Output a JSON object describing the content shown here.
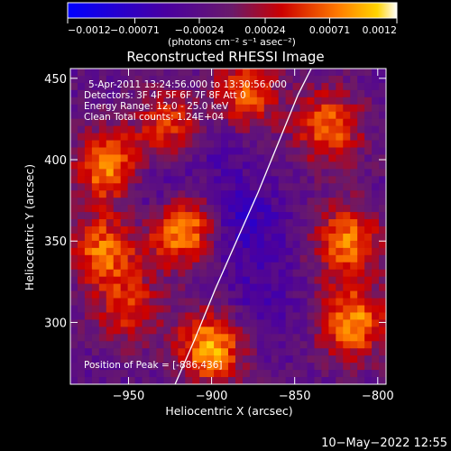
{
  "chart_data": {
    "type": "heatmap",
    "title": "Reconstructed RHESSI Image",
    "xlabel": "Heliocentric X (arcsec)",
    "ylabel": "Heliocentric Y (arcsec)",
    "xlim": [
      -985,
      -795
    ],
    "ylim": [
      262,
      456
    ],
    "xticks": [
      -950,
      -900,
      -850,
      -800
    ],
    "yticks": [
      300,
      350,
      400,
      450
    ],
    "xtick_labels": [
      "−950",
      "−900",
      "−850",
      "−800"
    ],
    "ytick_labels": [
      "300",
      "350",
      "400",
      "450"
    ],
    "colorbar": {
      "range": [
        -0.0012,
        0.0012
      ],
      "ticks": [
        -0.0012,
        -0.00071,
        -0.00024,
        0.00024,
        0.00071,
        0.0012
      ],
      "tick_labels": [
        "−0.0012",
        "−0.00071",
        "−0.00024",
        "0.00024",
        "0.00071",
        "0.0012"
      ],
      "unit": "(photons cm⁻² s⁻¹ asec⁻²)"
    },
    "annotations": [
      "5-Apr-2011 13:24:56.000 to 13:30:56.000",
      "Detectors: 3F 4F 5F 6F 7F 8F  Att 0",
      "Energy Range: 12.0 - 25.0 keV",
      "Clean     Total counts: 1.24E+04"
    ],
    "peak_label": "Position of Peak = [-886,436]",
    "limb": [
      [
        -922,
        262
      ],
      [
        -910,
        290
      ],
      [
        -898,
        320
      ],
      [
        -885,
        350
      ],
      [
        -872,
        380
      ],
      [
        -860,
        410
      ],
      [
        -848,
        440
      ],
      [
        -840,
        456
      ]
    ],
    "emission_regions": [
      {
        "x": -962,
        "y": 395,
        "level": 0.9
      },
      {
        "x": -965,
        "y": 345,
        "level": 0.75
      },
      {
        "x": -918,
        "y": 358,
        "level": 1.0
      },
      {
        "x": -925,
        "y": 420,
        "level": 0.65
      },
      {
        "x": -880,
        "y": 440,
        "level": 0.7
      },
      {
        "x": -830,
        "y": 420,
        "level": 0.75
      },
      {
        "x": -818,
        "y": 350,
        "level": 0.8
      },
      {
        "x": -815,
        "y": 300,
        "level": 0.85
      },
      {
        "x": -900,
        "y": 285,
        "level": 0.95
      },
      {
        "x": -950,
        "y": 310,
        "level": 0.55
      }
    ],
    "depressions": [
      {
        "x": -935,
        "y": 380,
        "level": 0.9
      },
      {
        "x": -880,
        "y": 360,
        "level": 1.0
      },
      {
        "x": -870,
        "y": 310,
        "level": 0.6
      },
      {
        "x": -900,
        "y": 410,
        "level": 0.55
      }
    ]
  },
  "timestamp": "10−May−2022 12:55"
}
